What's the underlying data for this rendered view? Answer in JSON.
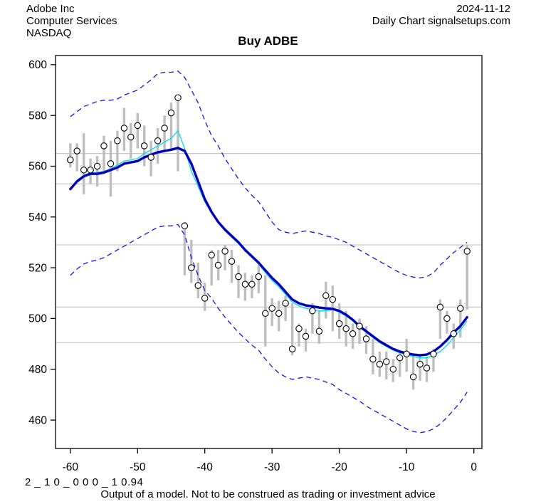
{
  "header": {
    "company": "Adobe Inc",
    "sector": "Computer Services",
    "exchange": "NASDAQ",
    "date": "2024-11-12",
    "chart_label": "Daily Chart signalsetups.com"
  },
  "title": "Buy ADBE",
  "footer": {
    "model_code": "2 _ 1 0 _ 0 0 0 _ 1 0.94",
    "disclaimer": "Output of a model. Not to be construed as trading or investment advice"
  },
  "chart_data": {
    "type": "line",
    "subtype": "daily-hilo-bars-with-model-fit-and-bands",
    "title": "Buy ADBE",
    "xlabel": "",
    "ylabel": "",
    "legend_position": "none",
    "x": [
      -60,
      -59,
      -58,
      -57,
      -56,
      -55,
      -54,
      -53,
      -52,
      -51,
      -50,
      -49,
      -48,
      -47,
      -46,
      -45,
      -44,
      -43,
      -42,
      -41,
      -40,
      -39,
      -38,
      -37,
      -36,
      -35,
      -34,
      -33,
      -32,
      -31,
      -30,
      -29,
      -28,
      -27,
      -26,
      -25,
      -24,
      -23,
      -22,
      -21,
      -20,
      -19,
      -18,
      -17,
      -16,
      -15,
      -14,
      -13,
      -12,
      -11,
      -10,
      -9,
      -8,
      -7,
      -6,
      -5,
      -4,
      -3,
      -2,
      -1
    ],
    "series": [
      {
        "name": "high",
        "values": [
          569,
          569,
          573,
          563,
          564,
          572,
          570,
          574,
          583,
          577,
          581,
          576,
          570,
          575,
          580,
          585,
          587.5,
          538,
          531,
          522,
          514,
          527,
          527,
          529,
          527,
          521,
          518,
          517,
          521,
          517,
          508,
          507,
          509,
          506,
          498,
          496,
          506,
          503,
          514.5,
          513,
          506,
          503,
          498,
          500,
          497,
          492,
          487,
          487,
          484,
          487,
          492,
          486,
          486,
          485,
          488,
          507.5,
          503,
          498,
          507.5,
          529
        ]
      },
      {
        "name": "low",
        "values": [
          559.5,
          558,
          549,
          553,
          552,
          558,
          548,
          558,
          566,
          563,
          567,
          560,
          556,
          561,
          566,
          566,
          558,
          517,
          514,
          508,
          503,
          513,
          515,
          519,
          514,
          508,
          507,
          508,
          510,
          489,
          497,
          495,
          499,
          485.5,
          489,
          487,
          494,
          490,
          500,
          495,
          492,
          489,
          488,
          490,
          486,
          478,
          477,
          476,
          475,
          477,
          479,
          472,
          475.5,
          475,
          479,
          492,
          494,
          488,
          492.5,
          503.5
        ]
      },
      {
        "name": "close",
        "values": [
          562.5,
          566,
          558.5,
          558.5,
          560,
          568,
          561,
          570,
          575,
          571.5,
          576,
          568,
          563.5,
          570,
          575,
          581,
          587,
          536.5,
          520,
          513,
          508,
          525,
          521,
          526.5,
          522.5,
          516.5,
          513.5,
          513.5,
          516.5,
          502,
          504,
          502,
          506,
          488,
          496,
          493,
          503,
          495,
          509,
          507.5,
          498,
          496,
          494,
          497,
          492,
          484,
          482,
          483,
          480,
          484.5,
          486,
          477,
          482,
          480.5,
          486,
          504.5,
          500,
          494,
          504,
          526.5
        ]
      },
      {
        "name": "model_fit",
        "values": [
          551,
          554,
          556,
          557,
          557,
          557.5,
          558.5,
          559.5,
          561,
          561.5,
          562,
          563.5,
          564.5,
          565.5,
          566,
          566.5,
          567.2,
          566,
          561,
          554,
          547,
          542,
          538,
          535,
          532.5,
          530,
          527,
          524.5,
          522,
          519,
          516,
          513.5,
          510.5,
          507.5,
          506,
          505.2,
          504.8,
          504.3,
          504,
          503.8,
          503,
          501.5,
          499.5,
          497,
          495,
          493,
          491,
          489.5,
          488,
          487,
          486.3,
          485.8,
          485.5,
          485.8,
          487,
          489,
          491.5,
          494.5,
          497,
          500.5
        ]
      },
      {
        "name": "short_average",
        "values": [
          551,
          554.5,
          556.5,
          557.5,
          557.5,
          558,
          559,
          560.5,
          562,
          562.5,
          563,
          565,
          566.5,
          568,
          569.5,
          571,
          574,
          567,
          558,
          552,
          546,
          541.5,
          538,
          534.5,
          532,
          529.5,
          526.5,
          524,
          521.5,
          518,
          515,
          512.5,
          509.5,
          506.5,
          505,
          504,
          503.5,
          503,
          503,
          503.5,
          502.5,
          501,
          499,
          496.5,
          494.5,
          492.5,
          490.5,
          489,
          487.5,
          486.5,
          485.8,
          485,
          484.5,
          484.5,
          485.5,
          487,
          489.5,
          492.5,
          495.5,
          499
        ]
      },
      {
        "name": "upper_band",
        "values": [
          579.5,
          581.5,
          583.5,
          584.5,
          585.5,
          586,
          586,
          586.5,
          588,
          589,
          590,
          592,
          594,
          596.5,
          597,
          597,
          597.5,
          595,
          590,
          585,
          578,
          572,
          568,
          563,
          559,
          555,
          551.5,
          548.5,
          546,
          542,
          538,
          535,
          534,
          533.5,
          534,
          534.5,
          534,
          533.5,
          532.5,
          532,
          531,
          530,
          528.5,
          527,
          525.5,
          524,
          522.5,
          521,
          519.5,
          518,
          517,
          516.3,
          516,
          516.5,
          518,
          521,
          523.5,
          526,
          528,
          530
        ]
      },
      {
        "name": "lower_band",
        "values": [
          517,
          519.5,
          521.5,
          522.5,
          523,
          524,
          525.5,
          527,
          528.5,
          530,
          531.5,
          533,
          534.5,
          536,
          536.5,
          536.5,
          537,
          533,
          524,
          517,
          511,
          508,
          504,
          500.5,
          497.5,
          494.5,
          492,
          489.5,
          487.5,
          484,
          481,
          478.5,
          477,
          476,
          476.5,
          477,
          476.5,
          476,
          475,
          474,
          472,
          470.5,
          469,
          467.5,
          465.5,
          464,
          462.5,
          461,
          459.5,
          458,
          456.5,
          455.5,
          455,
          455.5,
          456.5,
          458.5,
          461,
          464,
          467,
          471
        ]
      }
    ],
    "grid_levels": [
      565,
      553,
      529,
      504.5,
      490.5
    ],
    "axis": {
      "xticks": [
        -60,
        -50,
        -40,
        -30,
        -20,
        -10,
        0
      ],
      "yticks": [
        600,
        580,
        560,
        540,
        520,
        500,
        480,
        460
      ],
      "xlim": [
        -62.2,
        1.2
      ],
      "ylim": [
        448.8,
        603.6
      ],
      "grid": "horizontal-levels-only"
    },
    "colors": {
      "range_bar": "#BEBEBE",
      "close_marker_stroke": "#000000",
      "close_marker_fill": "#FFFFFF",
      "model_fit": "#0000BB",
      "short_average": "#00DCE6",
      "bands": "#1515E6",
      "grid": "#C6C6C6",
      "axis": "#000000"
    }
  }
}
